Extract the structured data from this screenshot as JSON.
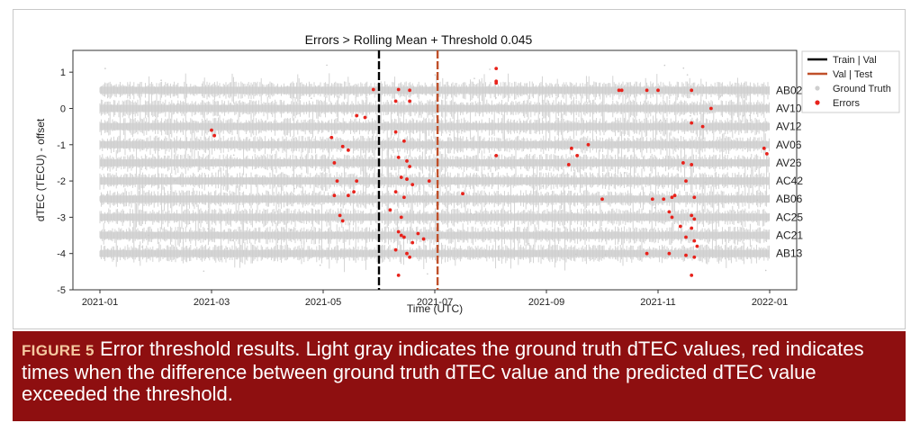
{
  "figure": {
    "caption_label": "FIGURE 5",
    "caption_text": "Error threshold results. Light gray indicates the ground truth dTEC values, red indicates times when the difference between ground truth dTEC value and the predicted dTEC value exceeded the threshold."
  },
  "chart_data": {
    "type": "scatter",
    "title": "Errors > Rolling Mean + Threshold 0.045",
    "xlabel": "Time (UTC)",
    "ylabel": "dTEC (TECU) - offset",
    "x_ticks": [
      "2021-01",
      "2021-03",
      "2021-05",
      "2021-07",
      "2021-09",
      "2021-11",
      "2022-01"
    ],
    "y_ticks": [
      1,
      0,
      -1,
      -2,
      -3,
      -4,
      -5
    ],
    "ylim": [
      -5,
      1.6
    ],
    "x_range_months": [
      0,
      12
    ],
    "grid": false,
    "legend_position": "outside-right",
    "legend": [
      {
        "label": "Train | Val",
        "kind": "line",
        "color": "#000000"
      },
      {
        "label": "Val | Test",
        "kind": "line",
        "color": "#c0502a"
      },
      {
        "label": "Ground Truth",
        "kind": "dot",
        "color": "#cfcfcf"
      },
      {
        "label": "Errors",
        "kind": "dot",
        "color": "#e8221b"
      }
    ],
    "split_lines": {
      "train_val_month": 5.0,
      "val_test_month": 6.05
    },
    "stations": [
      {
        "name": "AB02",
        "offset": 0.5
      },
      {
        "name": "AV10",
        "offset": 0.0
      },
      {
        "name": "AV12",
        "offset": -0.5
      },
      {
        "name": "AV06",
        "offset": -1.0
      },
      {
        "name": "AV26",
        "offset": -1.5
      },
      {
        "name": "AC42",
        "offset": -2.0
      },
      {
        "name": "AB06",
        "offset": -2.5
      },
      {
        "name": "AC25",
        "offset": -3.0
      },
      {
        "name": "AC21",
        "offset": -3.5
      },
      {
        "name": "AB13",
        "offset": -4.0
      }
    ],
    "errors": [
      [
        4.9,
        0.52
      ],
      [
        5.35,
        0.52
      ],
      [
        5.55,
        0.5
      ],
      [
        7.1,
        1.1
      ],
      [
        7.1,
        0.75
      ],
      [
        7.1,
        0.7
      ],
      [
        9.3,
        0.5
      ],
      [
        9.35,
        0.5
      ],
      [
        9.8,
        0.5
      ],
      [
        10.0,
        0.5
      ],
      [
        10.6,
        0.5
      ],
      [
        5.3,
        0.2
      ],
      [
        5.55,
        0.2
      ],
      [
        10.95,
        0.0
      ],
      [
        4.6,
        -0.2
      ],
      [
        4.75,
        -0.25
      ],
      [
        10.6,
        -0.4
      ],
      [
        10.8,
        -0.5
      ],
      [
        2.0,
        -0.6
      ],
      [
        2.05,
        -0.75
      ],
      [
        4.15,
        -0.8
      ],
      [
        5.3,
        -0.65
      ],
      [
        5.45,
        -0.9
      ],
      [
        8.75,
        -1.0
      ],
      [
        11.9,
        -1.1
      ],
      [
        11.95,
        -1.25
      ],
      [
        4.35,
        -1.05
      ],
      [
        4.45,
        -1.15
      ],
      [
        4.2,
        -1.5
      ],
      [
        5.35,
        -1.35
      ],
      [
        5.5,
        -1.45
      ],
      [
        5.55,
        -1.6
      ],
      [
        8.45,
        -1.1
      ],
      [
        8.55,
        -1.3
      ],
      [
        8.4,
        -1.55
      ],
      [
        10.45,
        -1.5
      ],
      [
        10.6,
        -1.55
      ],
      [
        7.1,
        -1.3
      ],
      [
        4.25,
        -2.0
      ],
      [
        4.6,
        -2.0
      ],
      [
        5.4,
        -1.9
      ],
      [
        5.5,
        -1.95
      ],
      [
        5.6,
        -2.1
      ],
      [
        5.9,
        -2.0
      ],
      [
        10.5,
        -2.0
      ],
      [
        4.2,
        -2.4
      ],
      [
        4.45,
        -2.4
      ],
      [
        4.55,
        -2.3
      ],
      [
        5.3,
        -2.3
      ],
      [
        5.45,
        -2.45
      ],
      [
        6.5,
        -2.35
      ],
      [
        9.0,
        -2.5
      ],
      [
        9.9,
        -2.5
      ],
      [
        10.1,
        -2.5
      ],
      [
        10.25,
        -2.45
      ],
      [
        10.3,
        -2.4
      ],
      [
        10.65,
        -2.45
      ],
      [
        4.3,
        -2.95
      ],
      [
        4.35,
        -3.1
      ],
      [
        5.2,
        -2.8
      ],
      [
        5.4,
        -3.0
      ],
      [
        10.2,
        -2.85
      ],
      [
        10.25,
        -3.0
      ],
      [
        10.4,
        -3.25
      ],
      [
        10.6,
        -2.95
      ],
      [
        10.65,
        -3.05
      ],
      [
        5.35,
        -3.4
      ],
      [
        5.4,
        -3.5
      ],
      [
        5.45,
        -3.55
      ],
      [
        5.6,
        -3.7
      ],
      [
        5.7,
        -3.45
      ],
      [
        5.8,
        -3.6
      ],
      [
        10.5,
        -3.55
      ],
      [
        10.6,
        -3.3
      ],
      [
        10.65,
        -3.65
      ],
      [
        10.7,
        -3.8
      ],
      [
        5.3,
        -3.9
      ],
      [
        5.5,
        -4.0
      ],
      [
        5.55,
        -4.1
      ],
      [
        9.8,
        -4.0
      ],
      [
        10.2,
        -4.0
      ],
      [
        10.5,
        -4.05
      ],
      [
        10.65,
        -4.1
      ],
      [
        10.6,
        -4.6
      ],
      [
        5.35,
        -4.6
      ]
    ]
  }
}
